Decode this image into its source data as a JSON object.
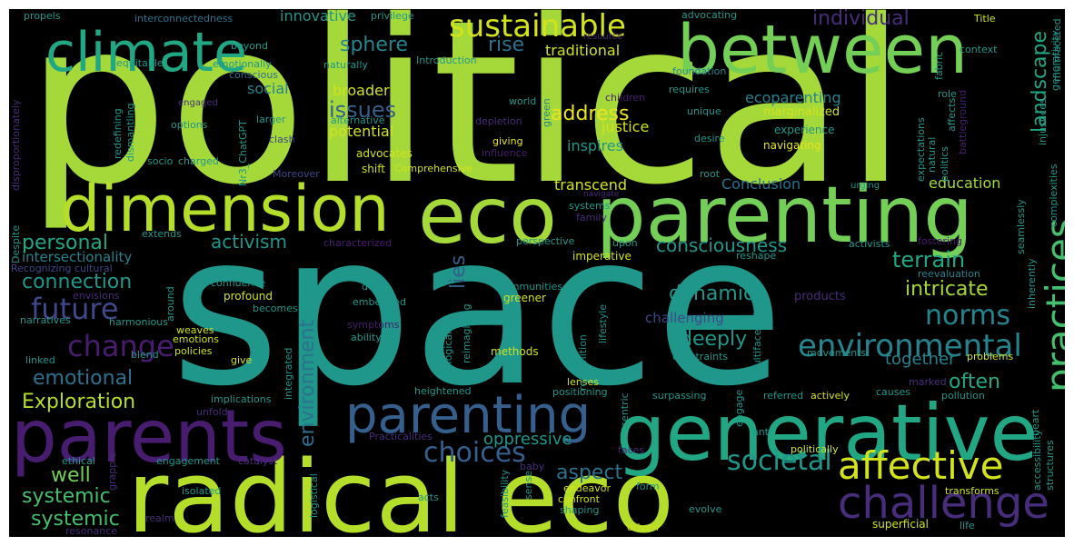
{
  "palette": [
    "#a5d93a",
    "#73cf56",
    "#45bf6e",
    "#22a785",
    "#1f978b",
    "#25848e",
    "#2c718e",
    "#355f8d",
    "#3f4889",
    "#472d7b",
    "#481c6e",
    "#b5de2b",
    "#d2e21b",
    "#eae51a"
  ],
  "words": [
    {
      "text": "political",
      "c": 0
    },
    {
      "text": "space",
      "c": 4
    },
    {
      "text": "radical eco",
      "c": 11
    },
    {
      "text": "generative",
      "c": 3
    },
    {
      "text": "parenting",
      "c": 1
    },
    {
      "text": "eco",
      "c": 0
    },
    {
      "text": "dimension",
      "c": 11
    },
    {
      "text": "between",
      "c": 1
    },
    {
      "text": "parents",
      "c": 10
    },
    {
      "text": "climate",
      "c": 3
    },
    {
      "text": "parenting",
      "c": 7
    },
    {
      "text": "challenge",
      "c": 9
    },
    {
      "text": "affective",
      "c": 12
    },
    {
      "text": "sustainable",
      "c": 12
    },
    {
      "text": "environmental",
      "c": 5
    },
    {
      "text": "practices",
      "c": 2
    },
    {
      "text": "societal",
      "c": 4
    },
    {
      "text": "choices",
      "c": 7
    },
    {
      "text": "norms",
      "c": 5
    },
    {
      "text": "change",
      "c": 10
    },
    {
      "text": "future",
      "c": 8
    },
    {
      "text": "Exploration",
      "c": 11
    },
    {
      "text": "emotional",
      "c": 6
    },
    {
      "text": "issues",
      "c": 7
    },
    {
      "text": "address",
      "c": 13
    },
    {
      "text": "sphere",
      "c": 5
    },
    {
      "text": "rise",
      "c": 6
    },
    {
      "text": "consciousness",
      "c": 4
    },
    {
      "text": "intricate",
      "c": 0
    },
    {
      "text": "terrain",
      "c": 3
    },
    {
      "text": "dynamic",
      "c": 4
    },
    {
      "text": "deeply",
      "c": 4
    },
    {
      "text": "activism",
      "c": 4
    },
    {
      "text": "personal",
      "c": 3
    },
    {
      "text": "connection",
      "c": 4
    },
    {
      "text": "systemic",
      "c": 2
    },
    {
      "text": "radical",
      "c": 7
    },
    {
      "text": "well",
      "c": 1
    },
    {
      "text": "aspect",
      "c": 6
    },
    {
      "text": "oppressive",
      "c": 4
    },
    {
      "text": "often",
      "c": 3
    },
    {
      "text": "together",
      "c": 5
    },
    {
      "text": "individual",
      "c": 9
    },
    {
      "text": "landscape",
      "c": 3
    },
    {
      "text": "environment",
      "c": 6
    },
    {
      "text": "lies",
      "c": 7
    },
    {
      "text": "ecoparenting",
      "c": 5
    },
    {
      "text": "justice",
      "c": 12
    },
    {
      "text": "inspires",
      "c": 4
    },
    {
      "text": "potential",
      "c": 12
    },
    {
      "text": "broader",
      "c": 12
    },
    {
      "text": "traditional",
      "c": 12
    },
    {
      "text": "innovative",
      "c": 4
    },
    {
      "text": "intersectionality",
      "c": 5
    },
    {
      "text": "challenging",
      "c": 8
    },
    {
      "text": "education",
      "c": 0
    },
    {
      "text": "transcend",
      "c": 12
    },
    {
      "text": "Conclusion",
      "c": 6
    },
    {
      "text": "marginalized",
      "c": 12
    },
    {
      "text": "experience",
      "c": 4
    },
    {
      "text": "navigating",
      "c": 13
    },
    {
      "text": "social",
      "c": 5
    },
    {
      "text": "alternative",
      "c": 4
    },
    {
      "text": "advocates",
      "c": 12
    },
    {
      "text": "giving",
      "c": 13
    },
    {
      "text": "influence",
      "c": 10
    },
    {
      "text": "depletion",
      "c": 9
    },
    {
      "text": "world",
      "c": 4
    },
    {
      "text": "options",
      "c": 4
    },
    {
      "text": "larger",
      "c": 4
    },
    {
      "text": "clash",
      "c": 8
    },
    {
      "text": "socio",
      "c": 4
    },
    {
      "text": "charged",
      "c": 4
    },
    {
      "text": "shift",
      "c": 12
    },
    {
      "text": "Comprehensive",
      "c": 12
    },
    {
      "text": "Moreover",
      "c": 8
    },
    {
      "text": "root",
      "c": 4
    },
    {
      "text": "urging",
      "c": 4
    },
    {
      "text": "propels",
      "c": 4
    },
    {
      "text": "interconnectedness",
      "c": 6
    },
    {
      "text": "privilege",
      "c": 4
    },
    {
      "text": "resource",
      "c": 9
    },
    {
      "text": "advocating",
      "c": 4
    },
    {
      "text": "Title",
      "c": 12
    },
    {
      "text": "beyond",
      "c": 4
    },
    {
      "text": "equitable",
      "c": 4
    },
    {
      "text": "emotionally",
      "c": 4
    },
    {
      "text": "conscious",
      "c": 6
    },
    {
      "text": "naturally",
      "c": 4
    },
    {
      "text": "Introduction",
      "c": 4
    },
    {
      "text": "foundation",
      "c": 5
    },
    {
      "text": "requires",
      "c": 4
    },
    {
      "text": "unique",
      "c": 4
    },
    {
      "text": "desire",
      "c": 4
    },
    {
      "text": "children",
      "c": 10
    },
    {
      "text": "green",
      "c": 5
    },
    {
      "text": "engaged",
      "c": 9
    },
    {
      "text": "context",
      "c": 4
    },
    {
      "text": "fabric",
      "c": 4
    },
    {
      "text": "role",
      "c": 4
    },
    {
      "text": "systems",
      "c": 4
    },
    {
      "text": "family",
      "c": 9
    },
    {
      "text": "navigate",
      "c": 9
    },
    {
      "text": "perspective",
      "c": 4
    },
    {
      "text": "upon",
      "c": 4
    },
    {
      "text": "imperative",
      "c": 12
    },
    {
      "text": "activists",
      "c": 4
    },
    {
      "text": "fostering",
      "c": 10
    },
    {
      "text": "reshape",
      "c": 4
    },
    {
      "text": "reevaluation",
      "c": 5
    },
    {
      "text": "products",
      "c": 9
    },
    {
      "text": "communities",
      "c": 4
    },
    {
      "text": "greener",
      "c": 12
    },
    {
      "text": "embedded",
      "c": 4
    },
    {
      "text": "deep",
      "c": 4
    },
    {
      "text": "symptoms",
      "c": 10
    },
    {
      "text": "ability",
      "c": 4
    },
    {
      "text": "methods",
      "c": 12
    },
    {
      "text": "constraints",
      "c": 4
    },
    {
      "text": "movements",
      "c": 4
    },
    {
      "text": "problems",
      "c": 12
    },
    {
      "text": "marked",
      "c": 9
    },
    {
      "text": "causes",
      "c": 4
    },
    {
      "text": "pollution",
      "c": 4
    },
    {
      "text": "referred",
      "c": 4
    },
    {
      "text": "actively",
      "c": 12
    },
    {
      "text": "surpassing",
      "c": 4
    },
    {
      "text": "positioning",
      "c": 4
    },
    {
      "text": "heightened",
      "c": 4
    },
    {
      "text": "lenses",
      "c": 12
    },
    {
      "text": "anti",
      "c": 4
    },
    {
      "text": "faces",
      "c": 9
    },
    {
      "text": "politically",
      "c": 12
    },
    {
      "text": "transforms",
      "c": 12
    },
    {
      "text": "superficial",
      "c": 12
    },
    {
      "text": "life",
      "c": 4
    },
    {
      "text": "evolve",
      "c": 4
    },
    {
      "text": "shaping",
      "c": 4
    },
    {
      "text": "driven",
      "c": 12
    },
    {
      "text": "confront",
      "c": 12
    },
    {
      "text": "form",
      "c": 4
    },
    {
      "text": "endeavor",
      "c": 12
    },
    {
      "text": "acts",
      "c": 4
    },
    {
      "text": "baby",
      "c": 9
    },
    {
      "text": "Practicalities",
      "c": 9
    },
    {
      "text": "catalyst",
      "c": 9
    },
    {
      "text": "engagement",
      "c": 4
    },
    {
      "text": "ethical",
      "c": 4
    },
    {
      "text": "isolated",
      "c": 4
    },
    {
      "text": "realm",
      "c": 9
    },
    {
      "text": "resonance",
      "c": 9
    },
    {
      "text": "implications",
      "c": 4
    },
    {
      "text": "unfold",
      "c": 9
    },
    {
      "text": "give",
      "c": 12
    },
    {
      "text": "policies",
      "c": 12
    },
    {
      "text": "emotions",
      "c": 12
    },
    {
      "text": "weaves",
      "c": 12
    },
    {
      "text": "blend",
      "c": 4
    },
    {
      "text": "linked",
      "c": 4
    },
    {
      "text": "harmonious",
      "c": 4
    },
    {
      "text": "narratives",
      "c": 4
    },
    {
      "text": "envisions",
      "c": 9
    },
    {
      "text": "profound",
      "c": 12
    },
    {
      "text": "becomes",
      "c": 4
    },
    {
      "text": "confluence",
      "c": 4
    },
    {
      "text": "Recognizing cultural",
      "c": 8
    },
    {
      "text": "extends",
      "c": 4
    },
    {
      "text": "characterized",
      "c": 10
    },
    {
      "text": "Despite",
      "c": 4
    },
    {
      "text": "disproportionately",
      "c": 9
    },
    {
      "text": "redefining",
      "c": 4
    },
    {
      "text": "dismantling",
      "c": 4
    },
    {
      "text": "Nr3_ChatGPT",
      "c": 4
    },
    {
      "text": "around",
      "c": 4
    },
    {
      "text": "logistical",
      "c": 4
    },
    {
      "text": "grapple",
      "c": 9
    },
    {
      "text": "feasibility",
      "c": 4
    },
    {
      "text": "sense",
      "c": 4
    },
    {
      "text": "reimagining",
      "c": 4
    },
    {
      "text": "ecological",
      "c": 4
    },
    {
      "text": "recognition",
      "c": 4
    },
    {
      "text": "lifestyle",
      "c": 4
    },
    {
      "text": "integrated",
      "c": 4
    },
    {
      "text": "multifaceted",
      "c": 4
    },
    {
      "text": "centric",
      "c": 4
    },
    {
      "text": "engage",
      "c": 4
    },
    {
      "text": "heart",
      "c": 4
    },
    {
      "text": "accessibility",
      "c": 4
    },
    {
      "text": "structures",
      "c": 4
    },
    {
      "text": "complexities",
      "c": 4
    },
    {
      "text": "seamlessly",
      "c": 4
    },
    {
      "text": "inherently",
      "c": 4
    },
    {
      "text": "injustices",
      "c": 4
    },
    {
      "text": "generativity",
      "c": 4
    },
    {
      "text": "affects",
      "c": 4
    },
    {
      "text": "battleground",
      "c": 10
    },
    {
      "text": "expectations",
      "c": 4
    },
    {
      "text": "politics",
      "c": 4
    },
    {
      "text": "natural",
      "c": 4
    }
  ]
}
